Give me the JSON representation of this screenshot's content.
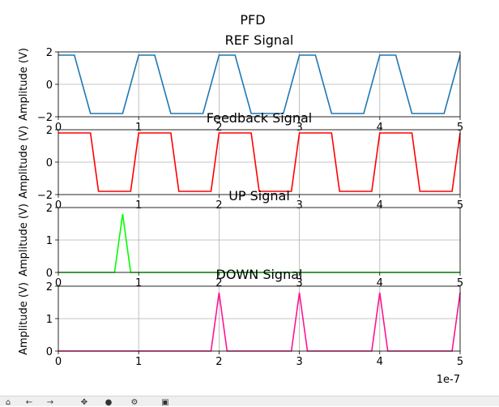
{
  "figure": {
    "suptitle": "PFD",
    "offset_label": "1e-7"
  },
  "chart_data": [
    {
      "type": "line",
      "title": "REF Signal",
      "ylabel": "Amplitude (V)",
      "xlim": [
        0,
        5
      ],
      "ylim": [
        -2,
        2
      ],
      "grid": true,
      "color": "#1f77b4",
      "xticks": [
        "0",
        "1",
        "2",
        "3",
        "4",
        "5"
      ],
      "yticks": [
        "-2",
        "0",
        "2"
      ],
      "x": [
        0,
        0.2,
        0.4,
        0.8,
        1.0,
        1.2,
        1.4,
        1.8,
        2.0,
        2.2,
        2.4,
        2.8,
        3.0,
        3.2,
        3.4,
        3.8,
        4.0,
        4.2,
        4.4,
        4.8,
        5.0
      ],
      "y": [
        1.8,
        1.8,
        -1.8,
        -1.8,
        1.8,
        1.8,
        -1.8,
        -1.8,
        1.8,
        1.8,
        -1.8,
        -1.8,
        1.8,
        1.8,
        -1.8,
        -1.8,
        1.8,
        1.8,
        -1.8,
        -1.8,
        1.8
      ]
    },
    {
      "type": "line",
      "title": "Feedback Signal",
      "ylabel": "Amplitude (V)",
      "xlim": [
        0,
        5
      ],
      "ylim": [
        -2,
        2
      ],
      "grid": true,
      "color": "#ff0000",
      "xticks": [
        "0",
        "1",
        "2",
        "3",
        "4",
        "5"
      ],
      "yticks": [
        "-2",
        "0",
        "2"
      ],
      "x": [
        0,
        0.4,
        0.5,
        0.9,
        1.0,
        1.4,
        1.5,
        1.9,
        2.0,
        2.4,
        2.5,
        2.9,
        3.0,
        3.4,
        3.5,
        3.9,
        4.0,
        4.4,
        4.5,
        4.9,
        5.0
      ],
      "y": [
        1.8,
        1.8,
        -1.8,
        -1.8,
        1.8,
        1.8,
        -1.8,
        -1.8,
        1.8,
        1.8,
        -1.8,
        -1.8,
        1.8,
        1.8,
        -1.8,
        -1.8,
        1.8,
        1.8,
        -1.8,
        -1.8,
        1.8
      ]
    },
    {
      "type": "line",
      "title": "UP Signal",
      "ylabel": "Amplitude (V)",
      "xlim": [
        0,
        5
      ],
      "ylim": [
        0,
        2
      ],
      "grid": true,
      "color": "#00ff00",
      "xticks": [
        "0",
        "1",
        "2",
        "3",
        "4",
        "5"
      ],
      "yticks": [
        "0",
        "1",
        "2"
      ],
      "x": [
        0,
        0.7,
        0.8,
        0.9,
        5.0
      ],
      "y": [
        0,
        0,
        1.8,
        0,
        0
      ]
    },
    {
      "type": "line",
      "title": "DOWN Signal",
      "ylabel": "Amplitude (V)",
      "xlim": [
        0,
        5
      ],
      "ylim": [
        0,
        2
      ],
      "grid": true,
      "color": "#ff1493",
      "xticks": [
        "0",
        "1",
        "2",
        "3",
        "4",
        "5"
      ],
      "yticks": [
        "0",
        "1",
        "2"
      ],
      "x": [
        0,
        1.9,
        2.0,
        2.1,
        2.9,
        3.0,
        3.1,
        3.9,
        4.0,
        4.1,
        4.9,
        5.0
      ],
      "y": [
        0,
        0,
        1.8,
        0,
        0,
        1.8,
        0,
        0,
        1.8,
        0,
        0,
        1.8
      ]
    }
  ],
  "toolbar": {
    "icons": [
      "home-icon",
      "back-icon",
      "forward-icon",
      "pan-icon",
      "zoom-icon",
      "configure-icon",
      "save-icon"
    ]
  }
}
